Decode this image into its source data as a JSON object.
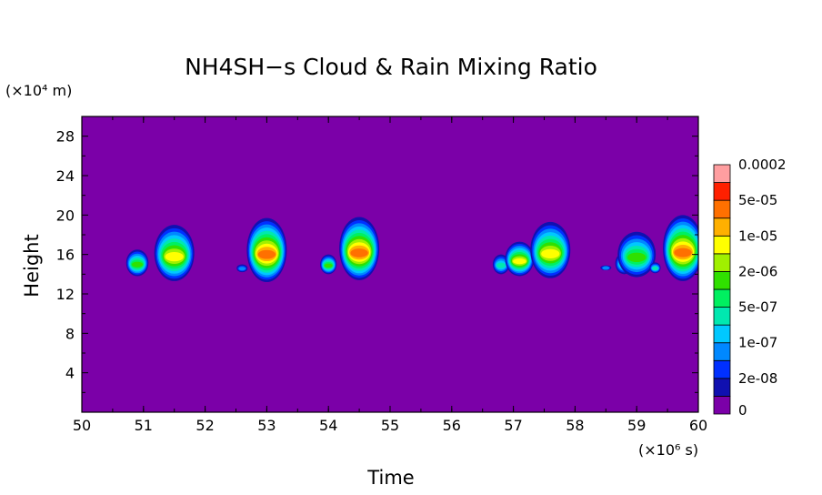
{
  "chart_data": {
    "type": "heatmap",
    "title": "NH4SH−s Cloud & Rain Mixing Ratio",
    "xlabel": "Time",
    "ylabel": "Height",
    "x_unit": "(×10⁶ s)",
    "y_unit": "(×10⁴ m)",
    "xlim": [
      50,
      60
    ],
    "ylim": [
      0,
      30
    ],
    "x_ticks": [
      "50",
      "51",
      "52",
      "53",
      "54",
      "55",
      "56",
      "57",
      "58",
      "59",
      "60"
    ],
    "y_ticks": [
      "4",
      "8",
      "12",
      "16",
      "20",
      "24",
      "28"
    ],
    "background_color": "#7b00a8",
    "colorbar": {
      "labels": [
        "0",
        "2e-08",
        "1e-07",
        "5e-07",
        "2e-06",
        "1e-05",
        "5e-05",
        "0.0002"
      ],
      "colors": [
        "#7b00a8",
        "#1010b0",
        "#0030ff",
        "#0088ff",
        "#00c8ff",
        "#00e8b0",
        "#00f060",
        "#30e000",
        "#a0f000",
        "#ffff00",
        "#ffb000",
        "#ff7000",
        "#ff2000",
        "#ff9ea0"
      ]
    },
    "cells": [
      {
        "t": 50.9,
        "z_bottom": 13.8,
        "z_top": 16.5,
        "peak": "2e-06"
      },
      {
        "t": 51.5,
        "z_bottom": 13.3,
        "z_top": 19.0,
        "peak": "1e-05"
      },
      {
        "t": 52.6,
        "z_bottom": 14.2,
        "z_top": 15.0,
        "peak": "1e-07"
      },
      {
        "t": 53.0,
        "z_bottom": 13.2,
        "z_top": 19.7,
        "peak": "5e-05"
      },
      {
        "t": 54.0,
        "z_bottom": 14.0,
        "z_top": 16.0,
        "peak": "2e-06"
      },
      {
        "t": 54.5,
        "z_bottom": 13.4,
        "z_top": 19.8,
        "peak": "5e-05"
      },
      {
        "t": 56.8,
        "z_bottom": 14.0,
        "z_top": 16.0,
        "peak": "5e-07"
      },
      {
        "t": 57.1,
        "z_bottom": 13.8,
        "z_top": 17.3,
        "peak": "1e-05"
      },
      {
        "t": 57.6,
        "z_bottom": 13.6,
        "z_top": 19.3,
        "peak": "1e-05"
      },
      {
        "t": 58.5,
        "z_bottom": 14.4,
        "z_top": 14.9,
        "peak": "1e-07"
      },
      {
        "t": 58.8,
        "z_bottom": 14.0,
        "z_top": 16.2,
        "peak": "5e-07"
      },
      {
        "t": 59.0,
        "z_bottom": 13.7,
        "z_top": 18.3,
        "peak": "2e-06"
      },
      {
        "t": 59.3,
        "z_bottom": 14.1,
        "z_top": 15.2,
        "peak": "5e-07"
      },
      {
        "t": 59.75,
        "z_bottom": 13.3,
        "z_top": 20.0,
        "peak": "5e-05"
      }
    ]
  }
}
